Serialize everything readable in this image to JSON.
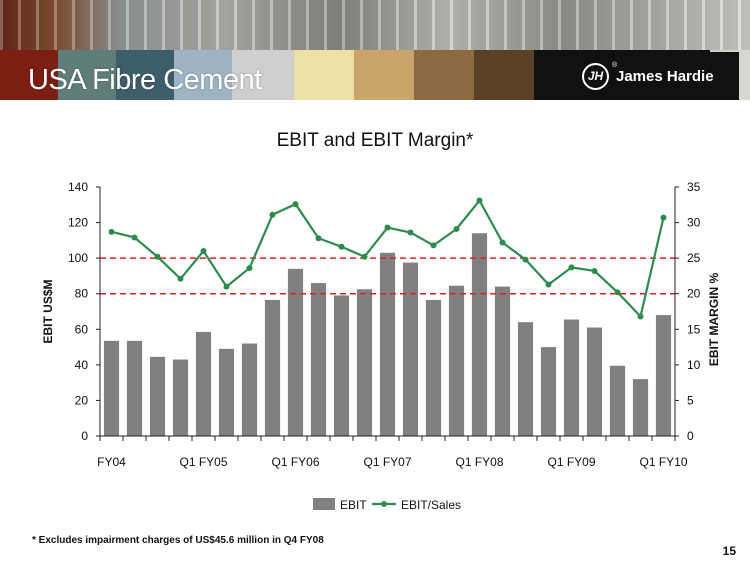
{
  "header": {
    "title": "USA Fibre Cement",
    "logo_text": "James Hardie",
    "logo_mark": "JH",
    "logo_registered": "®",
    "swatch_colors": [
      "#7a1f12",
      "#5f7d79",
      "#3e5d6a",
      "#9eb4c4",
      "#cfcfcf",
      "#ede0a6",
      "#c9a56b",
      "#8b6a43",
      "#5a4125",
      "#111111"
    ]
  },
  "chart_data": {
    "type": "bar",
    "title": "EBIT and EBIT Margin*",
    "ylabel": "EBIT US$M",
    "y2label": "EBIT MARGIN %",
    "ylim": [
      0,
      140
    ],
    "y2lim": [
      0,
      35
    ],
    "yticks": [
      0,
      20,
      40,
      60,
      80,
      100,
      120,
      140
    ],
    "y2ticks": [
      0,
      5,
      10,
      15,
      20,
      25,
      30,
      35
    ],
    "categories": [
      "FY04",
      "",
      "",
      "",
      "Q1 FY05",
      "",
      "",
      "",
      "Q1 FY06",
      "",
      "",
      "",
      "Q1 FY07",
      "",
      "",
      "",
      "Q1 FY08",
      "",
      "",
      "",
      "Q1 FY09",
      "",
      "",
      "",
      "Q1 FY10"
    ],
    "x_tick_labels": [
      "FY04",
      "Q1 FY05",
      "Q1 FY06",
      "Q1 FY07",
      "Q1 FY08",
      "Q1 FY09",
      "Q1 FY10"
    ],
    "series": [
      {
        "name": "EBIT",
        "type": "bar",
        "axis": "left",
        "color": "#808080",
        "values": [
          53.5,
          53.5,
          44.5,
          43,
          58.5,
          49,
          52,
          76.5,
          94,
          86,
          79,
          82.5,
          103,
          97.5,
          76.5,
          84.5,
          114,
          84,
          64,
          50,
          65.5,
          61,
          39.5,
          32,
          68
        ]
      },
      {
        "name": "EBIT/Sales",
        "type": "line",
        "axis": "right",
        "color": "#2e8b4e",
        "values": [
          28.7,
          27.9,
          25.2,
          22.1,
          26.0,
          21.0,
          23.6,
          31.1,
          32.6,
          27.8,
          26.6,
          25.2,
          29.3,
          28.6,
          26.8,
          29.1,
          33.1,
          27.2,
          24.8,
          21.3,
          23.7,
          23.2,
          20.2,
          16.8,
          30.7
        ]
      }
    ],
    "reference_lines": {
      "axis": "right",
      "values": [
        25,
        20
      ],
      "style": "dashed",
      "color": "#e02020"
    },
    "legend": {
      "position": "bottom",
      "entries": [
        "EBIT",
        "EBIT/Sales"
      ]
    },
    "grid": false
  },
  "footnote": "* Excludes impairment charges of US$45.6 million in Q4 FY08",
  "page_number": "15"
}
